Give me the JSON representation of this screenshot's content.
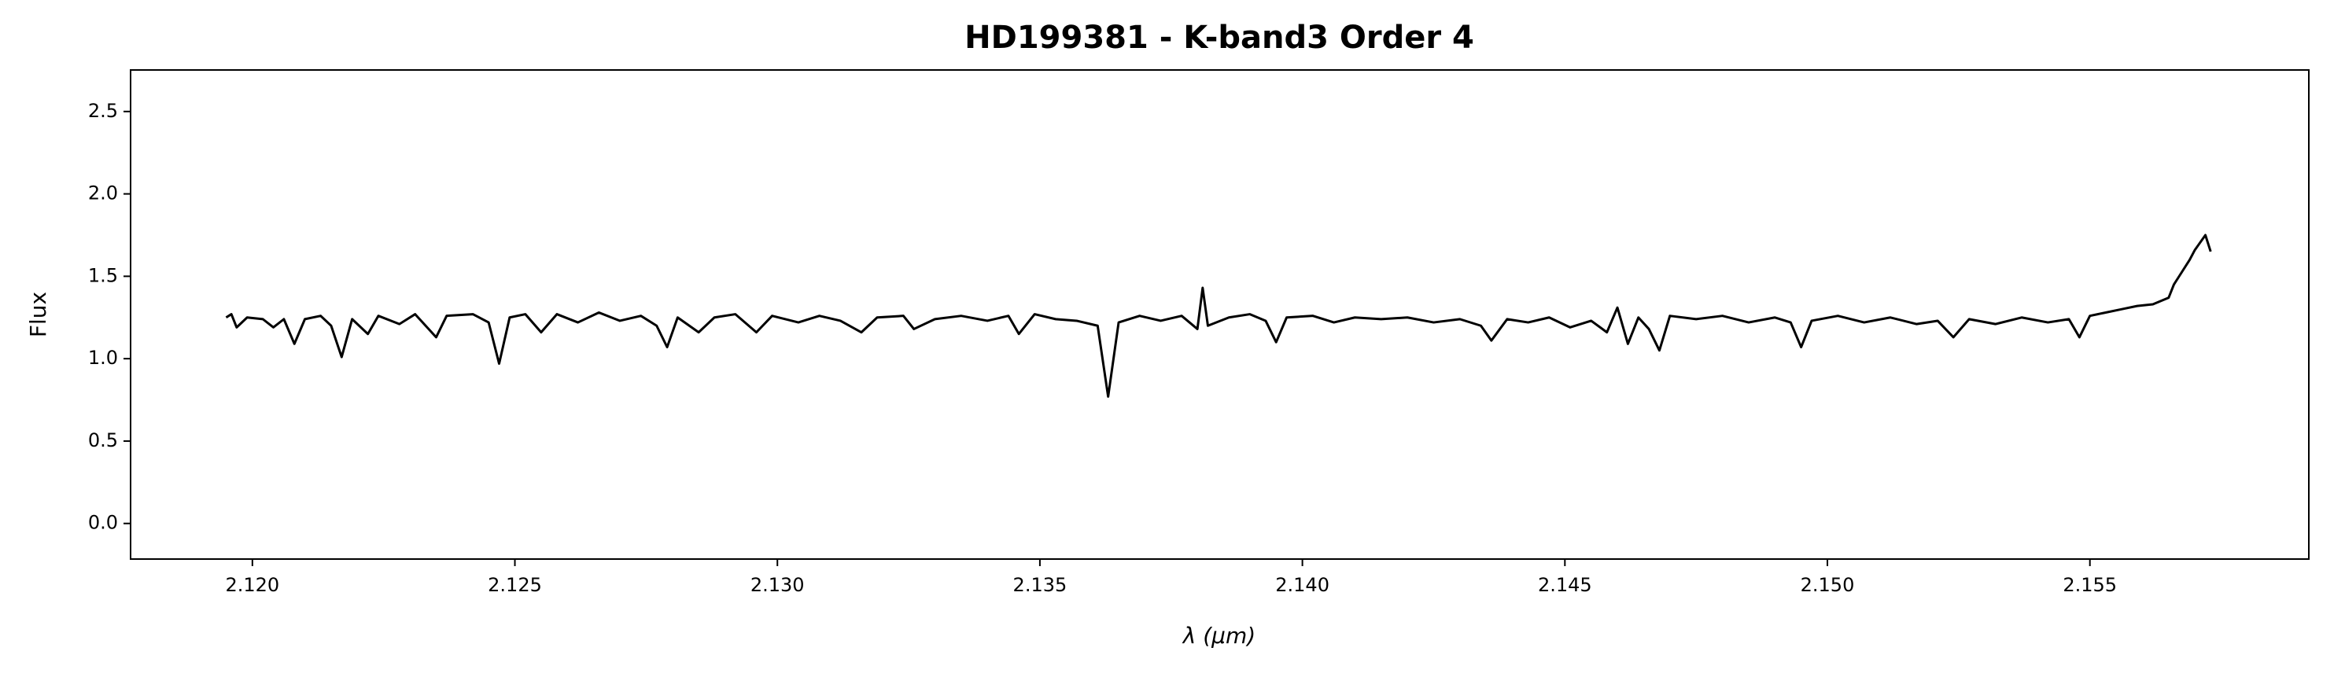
{
  "chart_data": {
    "type": "line",
    "title": "HD199381 - K-band3 Order 4",
    "xlabel": "λ (μm)",
    "ylabel": "Flux",
    "color": "#000000",
    "xlim": [
      2.11768,
      2.15917
    ],
    "ylim": [
      -0.216,
      2.752
    ],
    "xticks": [
      {
        "value": 2.12,
        "label": "2.120"
      },
      2.125,
      {
        "value": 2.13,
        "label": "2.130"
      },
      2.135,
      {
        "value": 2.14,
        "label": "2.140"
      },
      2.145,
      {
        "value": 2.15,
        "label": "2.150"
      },
      2.155
    ],
    "yticks": [
      {
        "value": 0,
        "label": "0.0"
      },
      0.5,
      {
        "value": 1,
        "label": "1.0"
      },
      1.5,
      {
        "value": 2,
        "label": "2.0"
      },
      2.5
    ],
    "x": [
      2.1195,
      2.1196,
      2.1197,
      2.1199,
      2.1202,
      2.1204,
      2.1206,
      2.1208,
      2.121,
      2.1213,
      2.1215,
      2.1217,
      2.1219,
      2.1222,
      2.1224,
      2.1228,
      2.1231,
      2.1235,
      2.1237,
      2.1242,
      2.1245,
      2.1247,
      2.1249,
      2.1252,
      2.1255,
      2.1258,
      2.1262,
      2.1266,
      2.127,
      2.1274,
      2.1277,
      2.1279,
      2.1281,
      2.1285,
      2.1288,
      2.1292,
      2.1296,
      2.1299,
      2.1304,
      2.1308,
      2.1312,
      2.1316,
      2.1319,
      2.1324,
      2.1326,
      2.133,
      2.1335,
      2.134,
      2.1344,
      2.1346,
      2.1349,
      2.1353,
      2.1357,
      2.1361,
      2.1363,
      2.1365,
      2.1369,
      2.1373,
      2.1377,
      2.138,
      2.1381,
      2.1382,
      2.1386,
      2.139,
      2.1393,
      2.1395,
      2.1397,
      2.1402,
      2.1406,
      2.141,
      2.1415,
      2.142,
      2.1425,
      2.143,
      2.1434,
      2.1436,
      2.1439,
      2.1443,
      2.1447,
      2.1451,
      2.1455,
      2.1458,
      2.146,
      2.1462,
      2.1464,
      2.1466,
      2.1468,
      2.147,
      2.1475,
      2.148,
      2.1485,
      2.149,
      2.1493,
      2.1495,
      2.1497,
      2.1502,
      2.1507,
      2.1512,
      2.1517,
      2.1521,
      2.1524,
      2.1527,
      2.1532,
      2.1537,
      2.1542,
      2.1546,
      2.1548,
      2.155,
      2.1553,
      2.1556,
      2.1559,
      2.1562,
      2.1565,
      2.1566,
      2.1567,
      2.1569,
      2.157,
      2.1572,
      2.1573
    ],
    "values": [
      1.25,
      1.27,
      1.19,
      1.25,
      1.24,
      1.19,
      1.24,
      1.09,
      1.24,
      1.26,
      1.2,
      1.01,
      1.24,
      1.15,
      1.26,
      1.21,
      1.27,
      1.13,
      1.26,
      1.27,
      1.22,
      0.97,
      1.25,
      1.27,
      1.16,
      1.27,
      1.22,
      1.28,
      1.23,
      1.26,
      1.2,
      1.07,
      1.25,
      1.16,
      1.25,
      1.27,
      1.16,
      1.26,
      1.22,
      1.26,
      1.23,
      1.16,
      1.25,
      1.26,
      1.18,
      1.24,
      1.26,
      1.23,
      1.26,
      1.15,
      1.27,
      1.24,
      1.23,
      1.2,
      0.77,
      1.22,
      1.26,
      1.23,
      1.26,
      1.18,
      1.43,
      1.2,
      1.25,
      1.27,
      1.23,
      1.1,
      1.25,
      1.26,
      1.22,
      1.25,
      1.24,
      1.25,
      1.22,
      1.24,
      1.2,
      1.11,
      1.24,
      1.22,
      1.25,
      1.19,
      1.23,
      1.16,
      1.31,
      1.09,
      1.25,
      1.18,
      1.05,
      1.26,
      1.24,
      1.26,
      1.22,
      1.25,
      1.22,
      1.07,
      1.23,
      1.26,
      1.22,
      1.25,
      1.21,
      1.23,
      1.13,
      1.24,
      1.21,
      1.25,
      1.22,
      1.24,
      1.13,
      1.26,
      1.28,
      1.3,
      1.32,
      1.33,
      1.37,
      1.45,
      1.5,
      1.6,
      1.66,
      1.75,
      1.65
    ]
  }
}
